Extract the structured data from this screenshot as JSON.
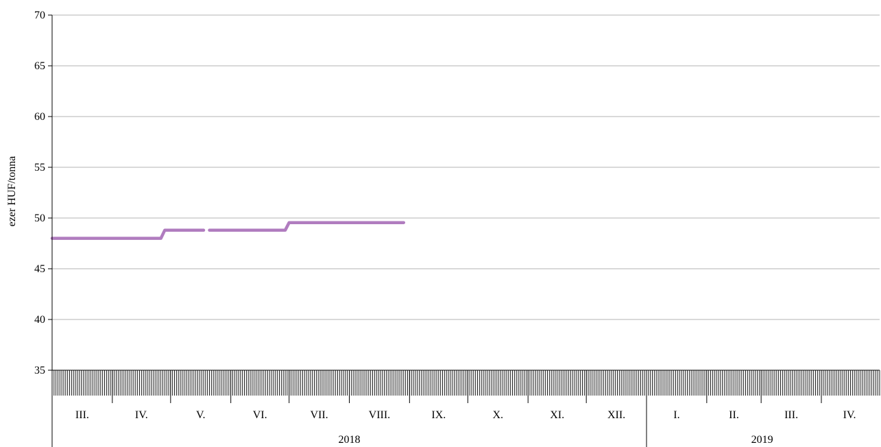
{
  "chart_data": {
    "type": "line",
    "ylabel": "ezer HUF/tonna",
    "ylim": [
      35,
      70
    ],
    "yticks": [
      35,
      40,
      45,
      50,
      55,
      60,
      65,
      70
    ],
    "ytick_labels": [
      "35",
      "40",
      "45",
      "50",
      "55",
      "60",
      "65",
      "70"
    ],
    "grid": true,
    "x_start": "2018-03-01",
    "x_end": "2019-04-30",
    "months": [
      {
        "label": "III.",
        "start": "2018-03-01",
        "end": "2018-04-01"
      },
      {
        "label": "IV.",
        "start": "2018-04-01",
        "end": "2018-05-01"
      },
      {
        "label": "V.",
        "start": "2018-05-01",
        "end": "2018-06-01"
      },
      {
        "label": "VI.",
        "start": "2018-06-01",
        "end": "2018-07-01"
      },
      {
        "label": "VII.",
        "start": "2018-07-01",
        "end": "2018-08-01"
      },
      {
        "label": "VIII.",
        "start": "2018-08-01",
        "end": "2018-09-01"
      },
      {
        "label": "IX.",
        "start": "2018-09-01",
        "end": "2018-10-01"
      },
      {
        "label": "X.",
        "start": "2018-10-01",
        "end": "2018-11-01"
      },
      {
        "label": "XI.",
        "start": "2018-11-01",
        "end": "2018-12-01"
      },
      {
        "label": "XII.",
        "start": "2018-12-01",
        "end": "2019-01-01"
      },
      {
        "label": "I.",
        "start": "2019-01-01",
        "end": "2019-02-01"
      },
      {
        "label": "II.",
        "start": "2019-02-01",
        "end": "2019-03-01"
      },
      {
        "label": "III.",
        "start": "2019-03-01",
        "end": "2019-04-01"
      },
      {
        "label": "IV.",
        "start": "2019-04-01",
        "end": "2019-04-30"
      }
    ],
    "years": [
      {
        "label": "2018",
        "start": "2018-03-01",
        "end": "2019-01-01"
      },
      {
        "label": "2019",
        "start": "2019-01-01",
        "end": "2019-04-30"
      }
    ],
    "series": [
      {
        "color": "#b07cbf",
        "segments": [
          [
            {
              "x": "2018-03-01",
              "y": 48.0
            },
            {
              "x": "2018-04-26",
              "y": 48.0
            },
            {
              "x": "2018-04-28",
              "y": 48.8
            },
            {
              "x": "2018-05-18",
              "y": 48.8
            }
          ],
          [
            {
              "x": "2018-05-21",
              "y": 48.8
            },
            {
              "x": "2018-06-29",
              "y": 48.8
            },
            {
              "x": "2018-07-01",
              "y": 49.55
            },
            {
              "x": "2018-08-29",
              "y": 49.55
            }
          ]
        ]
      }
    ]
  }
}
